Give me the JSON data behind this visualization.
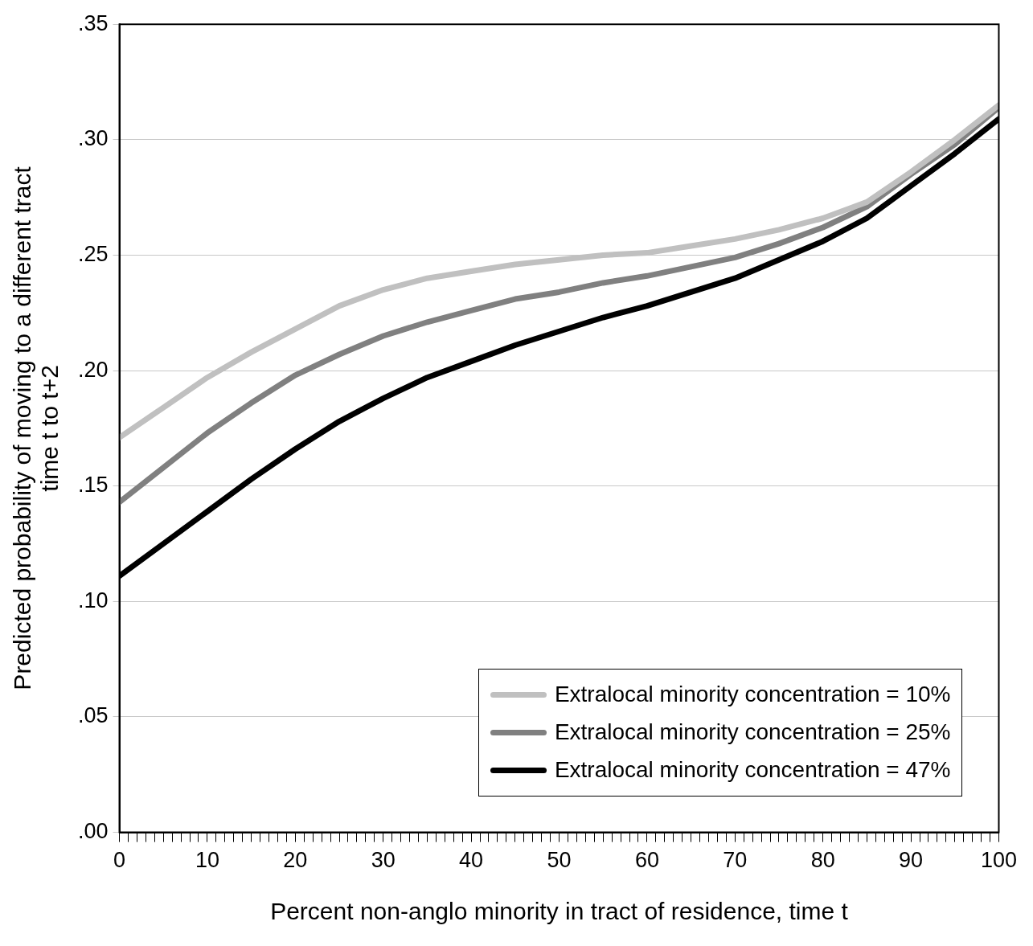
{
  "chart_data": {
    "type": "line",
    "xlabel": "Percent non-anglo minority in tract of residence, time t",
    "ylabel": "Predicted probability of moving to a different tract\ntime t to t+2",
    "x": [
      0,
      5,
      10,
      15,
      20,
      25,
      30,
      35,
      40,
      45,
      50,
      55,
      60,
      65,
      70,
      75,
      80,
      85,
      90,
      95,
      100
    ],
    "series": [
      {
        "name": "Extralocal minority concentration = 10%",
        "color": "#c0c0c0",
        "values": [
          0.171,
          0.184,
          0.197,
          0.208,
          0.218,
          0.228,
          0.235,
          0.24,
          0.243,
          0.246,
          0.248,
          0.25,
          0.251,
          0.254,
          0.257,
          0.261,
          0.266,
          0.273,
          0.286,
          0.3,
          0.315
        ]
      },
      {
        "name": "Extralocal minority concentration = 25%",
        "color": "#808080",
        "values": [
          0.143,
          0.158,
          0.173,
          0.186,
          0.198,
          0.207,
          0.215,
          0.221,
          0.226,
          0.231,
          0.234,
          0.238,
          0.241,
          0.245,
          0.249,
          0.255,
          0.262,
          0.271,
          0.285,
          0.298,
          0.314
        ]
      },
      {
        "name": "Extralocal minority concentration = 47%",
        "color": "#000000",
        "values": [
          0.111,
          0.125,
          0.139,
          0.153,
          0.166,
          0.178,
          0.188,
          0.197,
          0.204,
          0.211,
          0.217,
          0.223,
          0.228,
          0.234,
          0.24,
          0.248,
          0.256,
          0.266,
          0.28,
          0.294,
          0.309
        ]
      }
    ],
    "xlim": [
      0,
      100
    ],
    "xticks": [
      0,
      {
        "value": 1,
        "label": null
      },
      {
        "value": 2,
        "label": null
      },
      {
        "value": 3,
        "label": null
      },
      {
        "value": 4,
        "label": null
      },
      {
        "value": 5,
        "label": null
      },
      {
        "value": 6,
        "label": null
      },
      {
        "value": 7,
        "label": null
      },
      {
        "value": 8,
        "label": null
      },
      {
        "value": 9,
        "label": null
      },
      10,
      {
        "value": 11,
        "label": null
      },
      {
        "value": 12,
        "label": null
      },
      {
        "value": 13,
        "label": null
      },
      {
        "value": 14,
        "label": null
      },
      {
        "value": 15,
        "label": null
      },
      {
        "value": 16,
        "label": null
      },
      {
        "value": 17,
        "label": null
      },
      {
        "value": 18,
        "label": null
      },
      {
        "value": 19,
        "label": null
      },
      20,
      {
        "value": 21,
        "label": null
      },
      {
        "value": 22,
        "label": null
      },
      {
        "value": 23,
        "label": null
      },
      {
        "value": 24,
        "label": null
      },
      {
        "value": 25,
        "label": null
      },
      {
        "value": 26,
        "label": null
      },
      {
        "value": 27,
        "label": null
      },
      {
        "value": 28,
        "label": null
      },
      {
        "value": 29,
        "label": null
      },
      30,
      {
        "value": 31,
        "label": null
      },
      {
        "value": 32,
        "label": null
      },
      {
        "value": 33,
        "label": null
      },
      {
        "value": 34,
        "label": null
      },
      {
        "value": 35,
        "label": null
      },
      {
        "value": 36,
        "label": null
      },
      {
        "value": 37,
        "label": null
      },
      {
        "value": 38,
        "label": null
      },
      {
        "value": 39,
        "label": null
      },
      40,
      {
        "value": 41,
        "label": null
      },
      {
        "value": 42,
        "label": null
      },
      {
        "value": 43,
        "label": null
      },
      {
        "value": 44,
        "label": null
      },
      {
        "value": 45,
        "label": null
      },
      {
        "value": 46,
        "label": null
      },
      {
        "value": 47,
        "label": null
      },
      {
        "value": 48,
        "label": null
      },
      {
        "value": 49,
        "label": null
      },
      50,
      {
        "value": 51,
        "label": null
      },
      {
        "value": 52,
        "label": null
      },
      {
        "value": 53,
        "label": null
      },
      {
        "value": 54,
        "label": null
      },
      {
        "value": 55,
        "label": null
      },
      {
        "value": 56,
        "label": null
      },
      {
        "value": 57,
        "label": null
      },
      {
        "value": 58,
        "label": null
      },
      {
        "value": 59,
        "label": null
      },
      60,
      {
        "value": 61,
        "label": null
      },
      {
        "value": 62,
        "label": null
      },
      {
        "value": 63,
        "label": null
      },
      {
        "value": 64,
        "label": null
      },
      {
        "value": 65,
        "label": null
      },
      {
        "value": 66,
        "label": null
      },
      {
        "value": 67,
        "label": null
      },
      {
        "value": 68,
        "label": null
      },
      {
        "value": 69,
        "label": null
      },
      70,
      {
        "value": 71,
        "label": null
      },
      {
        "value": 72,
        "label": null
      },
      {
        "value": 73,
        "label": null
      },
      {
        "value": 74,
        "label": null
      },
      {
        "value": 75,
        "label": null
      },
      {
        "value": 76,
        "label": null
      },
      {
        "value": 77,
        "label": null
      },
      {
        "value": 78,
        "label": null
      },
      {
        "value": 79,
        "label": null
      },
      80,
      {
        "value": 81,
        "label": null
      },
      {
        "value": 82,
        "label": null
      },
      {
        "value": 83,
        "label": null
      },
      {
        "value": 84,
        "label": null
      },
      {
        "value": 85,
        "label": null
      },
      {
        "value": 86,
        "label": null
      },
      {
        "value": 87,
        "label": null
      },
      {
        "value": 88,
        "label": null
      },
      {
        "value": 89,
        "label": null
      },
      90,
      {
        "value": 91,
        "label": null
      },
      {
        "value": 92,
        "label": null
      },
      {
        "value": 93,
        "label": null
      },
      {
        "value": 94,
        "label": null
      },
      {
        "value": 95,
        "label": null
      },
      {
        "value": 96,
        "label": null
      },
      {
        "value": 97,
        "label": null
      },
      {
        "value": 98,
        "label": null
      },
      {
        "value": 99,
        "label": null
      },
      100
    ],
    "ylim": [
      0,
      0.35
    ],
    "yticks": [
      {
        "value": 0,
        "label": ".00"
      },
      {
        "value": 0.05,
        "label": ".05"
      },
      {
        "value": 0.1,
        "label": ".10"
      },
      {
        "value": 0.15,
        "label": ".15"
      },
      {
        "value": 0.2,
        "label": ".20"
      },
      {
        "value": 0.25,
        "label": ".25"
      },
      {
        "value": 0.3,
        "label": ".30"
      },
      {
        "value": 0.35,
        "label": ".35"
      }
    ],
    "grid": "y",
    "legend": "bottom right",
    "marker": "none",
    "line_style": "solid"
  }
}
